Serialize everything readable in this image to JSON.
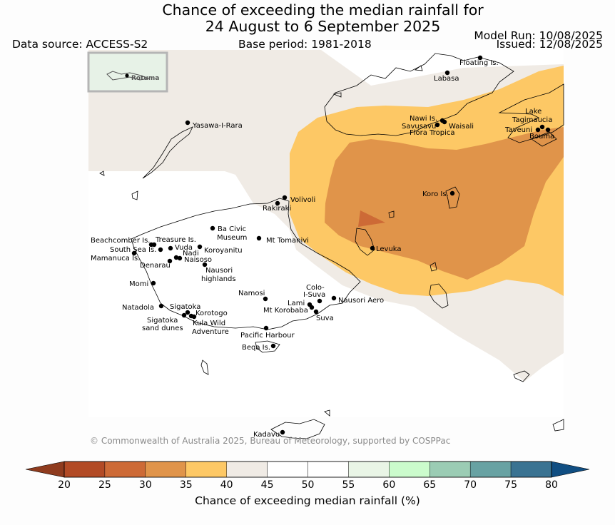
{
  "title_line1": "Chance of exceeding the median rainfall for",
  "title_line2": "24 August to 6 September 2025",
  "data_source": "Data source: ACCESS-S2",
  "base_period": "Base period: 1981-2018",
  "model_run": "Model Run: 10/08/2025",
  "issued": "Issued: 12/08/2025",
  "inset_label": "Rotuma",
  "copyright": "© Commonwealth of Australia 2025, Bureau of Meteorology, supported by COSPPac",
  "colorbar": {
    "label": "Chance of exceeding median rainfall (%)",
    "ticks": [
      "20",
      "25",
      "30",
      "35",
      "40",
      "45",
      "50",
      "55",
      "60",
      "65",
      "70",
      "75",
      "80"
    ],
    "colors": [
      "#a63f1f",
      "#b24a25",
      "#cd6a36",
      "#e0944a",
      "#fdc865",
      "#f0ebe5",
      "#ffffff",
      "#ffffff",
      "#e9f5e6",
      "#cbfbcc",
      "#9bccb4",
      "#68a2a3",
      "#3a7392",
      "#104e82"
    ]
  },
  "locations": {
    "floating_is": "Floating Is.",
    "labasa": "Labasa",
    "nawi_is": "Nawi Is.",
    "savusavu": "Savusavu",
    "waisali": "Waisali",
    "flora_tropica": "Flora Tropica",
    "lake_tagimaucia_1": "Lake",
    "lake_tagimaucia_2": "Tagimaucia",
    "taveuni": "Taveuni",
    "bouma": "Bouma",
    "yasawa": "Yasawa-I-Rara",
    "koro_is": "Koro Is.",
    "volivoli": "Volivoli",
    "rakiraki": "Rakiraki",
    "ba_civic_1": "Ba Civic",
    "ba_civic_2": "Museum",
    "mt_tomanivi": "Mt Tomanivi",
    "levuka": "Levuka",
    "beachcomber": "Beachcomber Is.",
    "treasure": "Treasure Is.",
    "south_sea": "South Sea Is.",
    "vuda": "Vuda",
    "koroyanitu": "Koroyanitu",
    "nadi": "Nadi",
    "mamanuca": "Mamanuca Is.",
    "naisoso": "Naisoso",
    "denarau": "Denarau",
    "nausori_hl_1": "Nausori",
    "nausori_hl_2": "highlands",
    "momi": "Momi",
    "colo_suva_1": "Colo-",
    "colo_suva_2": "I-Suva",
    "namosi": "Namosi",
    "lami": "Lami",
    "nausori_aero": "Nausori Aero",
    "mt_korobaba": "Mt Korobaba",
    "suva": "Suva",
    "natadola": "Natadola",
    "sigatoka": "Sigatoka",
    "korotogo": "Korotogo",
    "sigatoka_dunes_1": "Sigatoka",
    "sigatoka_dunes_2": "sand dunes",
    "kula_1": "Kula Wild",
    "kula_2": "Adventure",
    "pacific_harbour": "Pacific Harbour",
    "beqa": "Beqa Is.",
    "kadavu": "Kadavu"
  }
}
